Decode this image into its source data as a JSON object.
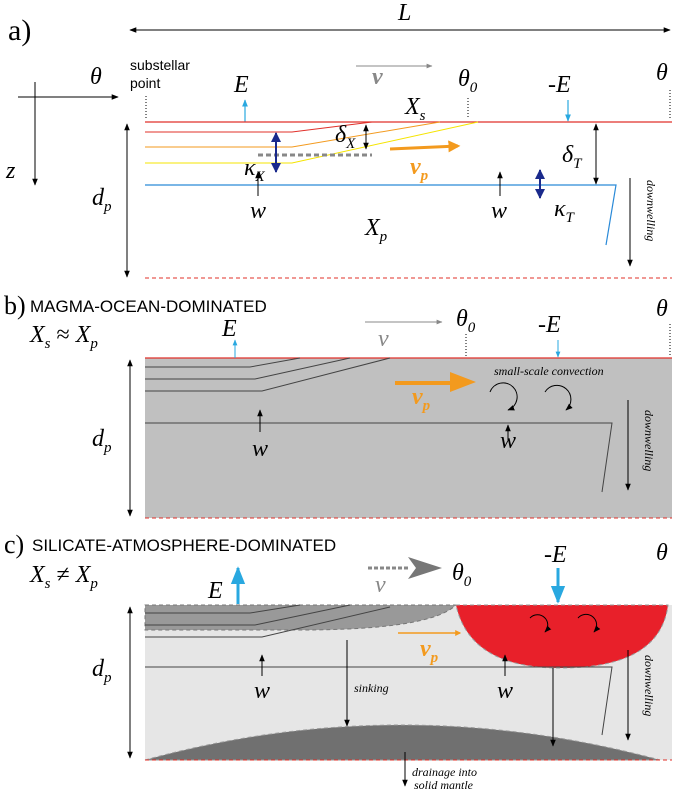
{
  "panel_a": {
    "label": "a)",
    "length": "L",
    "theta": "θ",
    "z": "z",
    "substellar": [
      "substellar",
      "point"
    ],
    "v": "v",
    "theta_0": {
      "symbol": "θ",
      "sub": "0"
    },
    "theta_end": "θ",
    "E": "E",
    "minus_E": "-E",
    "X_s": {
      "symbol": "X",
      "sub": "s"
    },
    "delta_X": {
      "symbol": "δ",
      "sub": "X"
    },
    "kappa_X": {
      "symbol": "κ",
      "sub": "X"
    },
    "v_p": {
      "symbol": "v",
      "sub": "p"
    },
    "delta_T": {
      "symbol": "δ",
      "sub": "T"
    },
    "kappa_T": {
      "symbol": "κ",
      "sub": "T"
    },
    "w": [
      "w",
      "w"
    ],
    "d_p": {
      "symbol": "d",
      "sub": "p"
    },
    "X_p": {
      "symbol": "X",
      "sub": "p"
    },
    "downwelling": "downwelling"
  },
  "panel_b": {
    "label": "b)",
    "title": "MAGMA-OCEAN-DOMINATED",
    "relation": {
      "left": "X",
      "left_sub": "s",
      "op": " ≈ ",
      "right": "X",
      "right_sub": "p"
    },
    "E": "E",
    "v": "v",
    "theta_0": {
      "symbol": "θ",
      "sub": "0"
    },
    "minus_E": "-E",
    "theta_end": "θ",
    "convection": "small-scale convection",
    "v_p": {
      "symbol": "v",
      "sub": "p"
    },
    "w": [
      "w",
      "w"
    ],
    "d_p": {
      "symbol": "d",
      "sub": "p"
    },
    "downwelling": "downwelling"
  },
  "panel_c": {
    "label": "c)",
    "title": "SILICATE-ATMOSPHERE-DOMINATED",
    "relation": {
      "left": "X",
      "left_sub": "s",
      "op": " ≠ ",
      "right": "X",
      "right_sub": "p"
    },
    "E": "E",
    "v": "v",
    "theta_0": {
      "symbol": "θ",
      "sub": "0"
    },
    "minus_E": "-E",
    "theta_end": "θ",
    "v_p": {
      "symbol": "v",
      "sub": "p"
    },
    "w": [
      "w",
      "w"
    ],
    "sinking": "sinking",
    "d_p": {
      "symbol": "d",
      "sub": "p"
    },
    "downwelling": "downwelling",
    "drainage": [
      "drainage into",
      "solid mantle"
    ]
  }
}
